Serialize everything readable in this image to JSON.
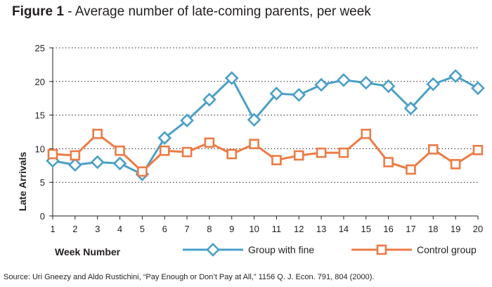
{
  "title": {
    "figure": "Figure 1",
    "separator": " - ",
    "text": "Average number of late-coming parents, per week"
  },
  "source": "Source: Uri Gneezy and Aldo Rustichini, “Pay Enough or Don’t Pay at All,” 1156 Q. J. Econ. 791, 804 (2000).",
  "chart_data": {
    "type": "line",
    "xlabel": "Week Number",
    "ylabel": "Late Arrivals",
    "x": [
      1,
      2,
      3,
      4,
      5,
      6,
      7,
      8,
      9,
      10,
      11,
      12,
      13,
      14,
      15,
      16,
      17,
      18,
      19,
      20
    ],
    "ylim": [
      0,
      25
    ],
    "yticks": [
      0,
      5,
      10,
      15,
      20,
      25
    ],
    "grid": "horizontal dotted",
    "legend_position": "bottom",
    "series": [
      {
        "name": "Group with fine",
        "color": "#4a9fc8",
        "marker": "diamond",
        "values": [
          8.2,
          7.6,
          8.0,
          7.8,
          6.2,
          11.6,
          14.2,
          17.3,
          20.5,
          14.3,
          18.2,
          18.0,
          19.5,
          20.2,
          19.8,
          19.3,
          16.0,
          19.6,
          20.8,
          19.0
        ]
      },
      {
        "name": "Control group",
        "color": "#ec7b45",
        "marker": "square",
        "values": [
          9.2,
          9.0,
          12.2,
          9.7,
          6.6,
          9.7,
          9.5,
          10.9,
          9.2,
          10.7,
          8.3,
          9.0,
          9.4,
          9.4,
          12.2,
          8.0,
          6.9,
          9.9,
          7.7,
          9.8
        ]
      }
    ]
  }
}
